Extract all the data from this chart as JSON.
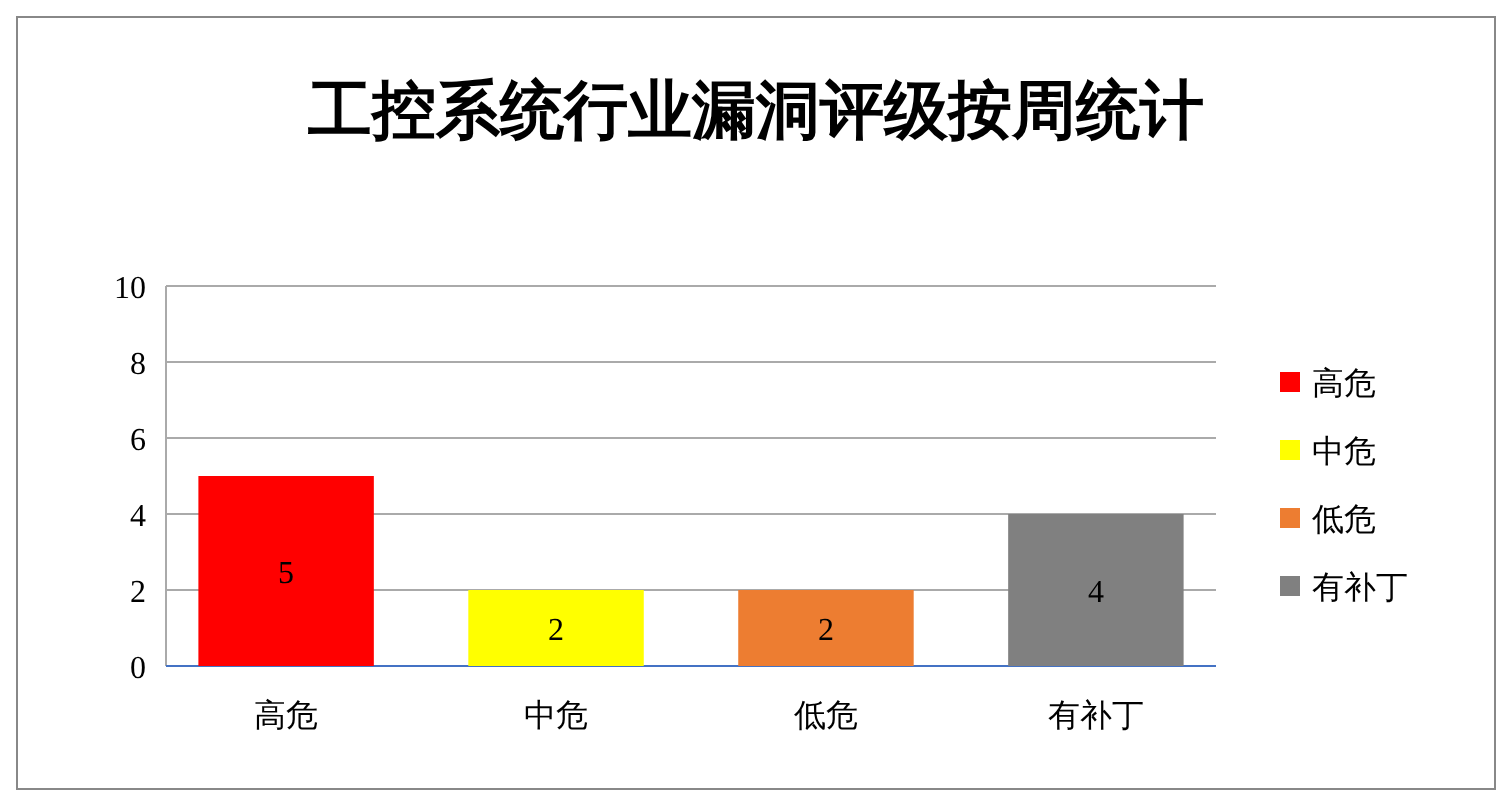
{
  "chart_data": {
    "type": "bar",
    "title": "工控系统行业漏洞评级按周统计",
    "categories": [
      "高危",
      "中危",
      "低危",
      "有补丁"
    ],
    "series": [
      {
        "name": "高危",
        "color": "#ff0000",
        "values": [
          5,
          null,
          null,
          null
        ]
      },
      {
        "name": "中危",
        "color": "#ffff00",
        "values": [
          null,
          2,
          null,
          null
        ]
      },
      {
        "name": "低危",
        "color": "#ed7d31",
        "values": [
          null,
          null,
          2,
          null
        ]
      },
      {
        "name": "有补丁",
        "color": "#808080",
        "values": [
          null,
          null,
          null,
          4
        ]
      }
    ],
    "stacked": true,
    "ylim": [
      0,
      10
    ],
    "yticks": [
      0,
      2,
      4,
      6,
      8,
      10
    ],
    "grid": "y",
    "legend": "right",
    "data_labels": true
  }
}
